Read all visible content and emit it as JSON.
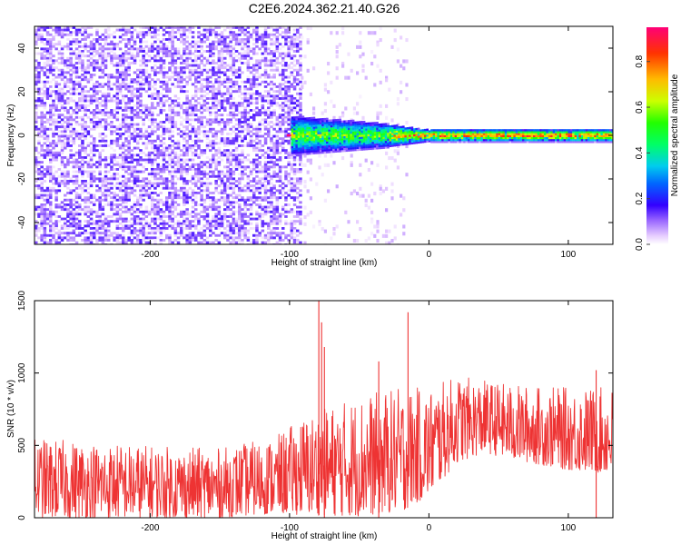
{
  "title": "C2E6.2024.362.21.40.G26",
  "chart_data": [
    {
      "type": "heatmap",
      "xlabel": "Height of straight line (km)",
      "ylabel": "Frequency (Hz)",
      "xlim": [
        -283,
        132
      ],
      "ylim": [
        -50,
        50
      ],
      "xticks": [
        "-200",
        "-100",
        "0",
        "100"
      ],
      "xtick_values": [
        -200,
        -100,
        0,
        100
      ],
      "yticks": [
        "-40",
        "-20",
        "0",
        "20",
        "40"
      ],
      "ytick_values": [
        -40,
        -20,
        0,
        20,
        40
      ],
      "colorbar": {
        "label": "Normalized spectral amplitude",
        "range": [
          0,
          0.95
        ],
        "ticks": [
          "0.0",
          "0.2",
          "0.4",
          "0.6",
          "0.8"
        ],
        "tick_values": [
          0,
          0.2,
          0.4,
          0.6,
          0.8
        ]
      },
      "regions": [
        {
          "x_range": [
            -283,
            -90
          ],
          "freq_range": [
            -50,
            50
          ],
          "amplitude": [
            0.02,
            0.12
          ]
        },
        {
          "x_range": [
            -100,
            -20
          ],
          "freq_range": [
            -8,
            8
          ],
          "amplitude": [
            0.1,
            0.55
          ]
        },
        {
          "x_range": [
            -20,
            50
          ],
          "freq_range": [
            -3,
            3
          ],
          "amplitude": [
            0.3,
            0.95
          ]
        },
        {
          "x_range": [
            50,
            132
          ],
          "freq_range": [
            -2,
            2
          ],
          "amplitude": [
            0.3,
            0.9
          ]
        }
      ],
      "grid": false
    },
    {
      "type": "line",
      "xlabel": "Height of straight line (km)",
      "ylabel": "SNR (10 * v/v)",
      "xlim": [
        -283,
        132
      ],
      "ylim": [
        0,
        1500
      ],
      "xticks": [
        "-200",
        "-100",
        "0",
        "100"
      ],
      "xtick_values": [
        -200,
        -100,
        0,
        100
      ],
      "yticks": [
        "0",
        "500",
        "1000",
        "1500"
      ],
      "ytick_values": [
        0,
        500,
        1000,
        1500
      ],
      "color": "#ee3333",
      "envelope": [
        {
          "x": -283,
          "low": 0,
          "high": 550
        },
        {
          "x": -200,
          "low": 0,
          "high": 500
        },
        {
          "x": -150,
          "low": 0,
          "high": 480
        },
        {
          "x": -110,
          "low": 30,
          "high": 560
        },
        {
          "x": -90,
          "low": 20,
          "high": 700
        },
        {
          "x": -50,
          "low": 10,
          "high": 850
        },
        {
          "x": -20,
          "low": 40,
          "high": 900
        },
        {
          "x": 0,
          "low": 150,
          "high": 900
        },
        {
          "x": 20,
          "low": 380,
          "high": 980
        },
        {
          "x": 40,
          "low": 450,
          "high": 950
        },
        {
          "x": 60,
          "low": 400,
          "high": 920
        },
        {
          "x": 100,
          "low": 330,
          "high": 900
        },
        {
          "x": 132,
          "low": 300,
          "high": 900
        }
      ],
      "spikes": [
        {
          "x": -79,
          "y": 1500
        },
        {
          "x": -77,
          "y": 1350
        },
        {
          "x": -75,
          "y": 1180
        },
        {
          "x": -36,
          "y": 1080
        },
        {
          "x": -15,
          "y": 1420
        },
        {
          "x": 120,
          "y": 1020
        }
      ],
      "grid": false
    }
  ]
}
